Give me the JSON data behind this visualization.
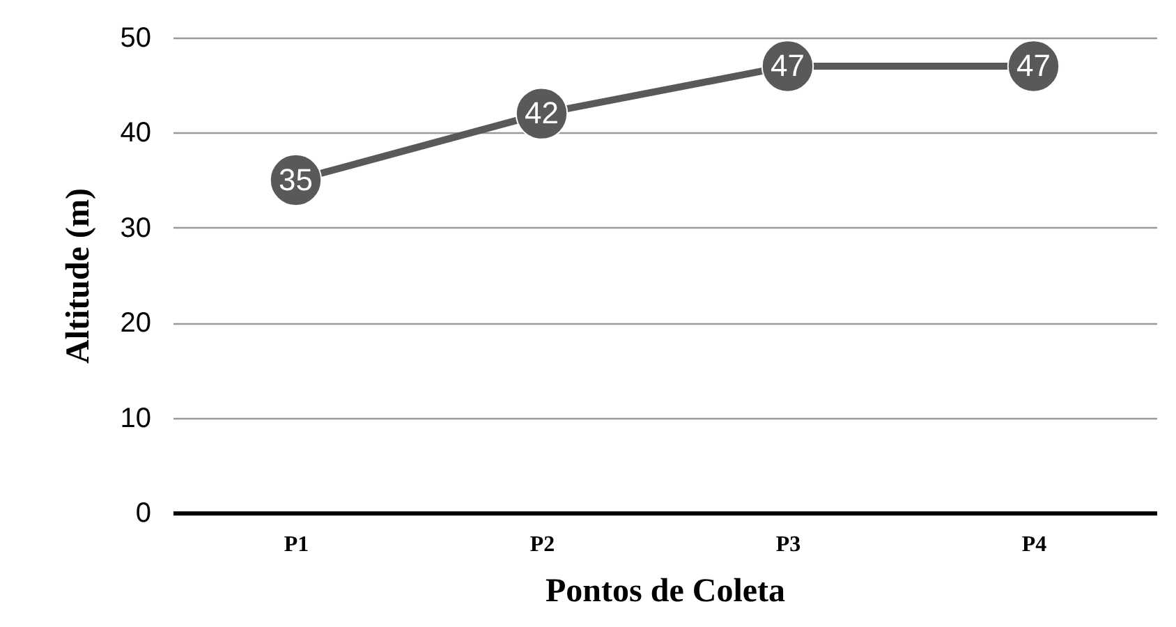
{
  "chart_data": {
    "type": "line",
    "xlabel": "Pontos de Coleta",
    "ylabel": "Altitude (m)",
    "categories": [
      "P1",
      "P2",
      "P3",
      "P4"
    ],
    "series": [
      {
        "color": "#595959",
        "values": [
          35,
          42,
          47,
          47
        ]
      }
    ],
    "ylim": [
      0,
      50
    ],
    "yticks": [
      0,
      10,
      20,
      30,
      40,
      50
    ],
    "grid": "y",
    "marker": "circle",
    "data_labels": true
  }
}
